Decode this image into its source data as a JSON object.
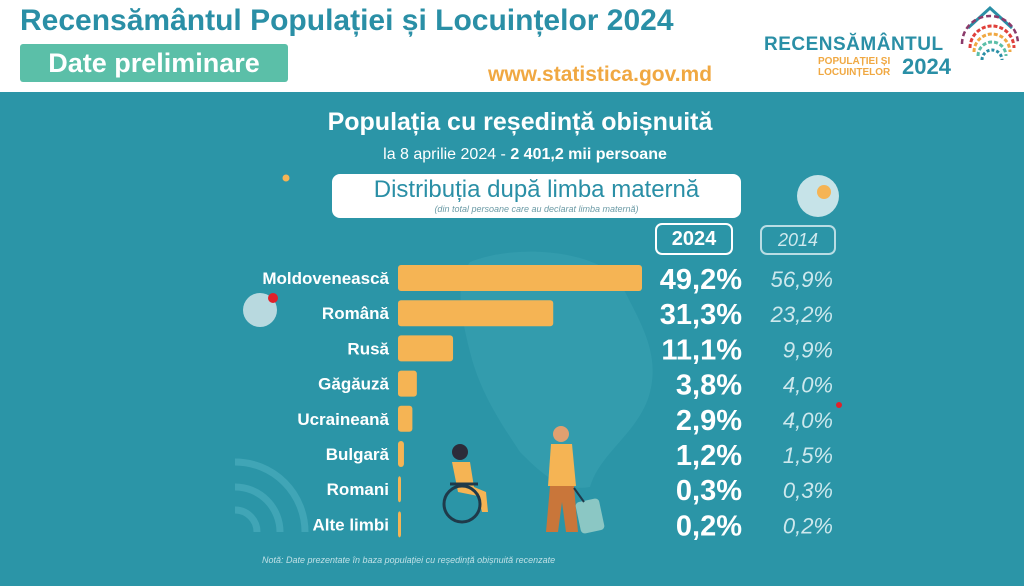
{
  "header": {
    "title": "Recensământul Populației și Locuințelor 2024",
    "badge": "Date preliminare",
    "website": "www.statistica.gov.md",
    "logo": {
      "line1": "RECENSĂMÂNTUL",
      "line2": "POPULAȚIEI ȘI",
      "line3": "LOCUINȚELOR",
      "year": "2024"
    }
  },
  "panel": {
    "subtitle": "Populația cu reședință obișnuită",
    "date_prefix": "la 8 aprilie 2024 - ",
    "date_value": "2 401,2 mii persoane",
    "distribution_title": "Distribuția după limba maternă",
    "distribution_note": "(din total persoane care au declarat limba maternă)",
    "footnote": "Notă: Date prezentate în baza populației cu reședință obișnuită recenzate"
  },
  "colors": {
    "panel_bg": "#2b95a7",
    "bar": "#f5b454",
    "header_teal": "#2a8fa6",
    "accent_orange": "#f0a842",
    "badge_green": "#5bbfa8"
  },
  "chart_data": {
    "type": "bar",
    "orientation": "horizontal",
    "categories": [
      "Moldovenească",
      "Română",
      "Rusă",
      "Găgăuză",
      "Ucraineană",
      "Bulgară",
      "Romani",
      "Alte limbi"
    ],
    "series": [
      {
        "name": "2024",
        "values": [
          49.2,
          31.3,
          11.1,
          3.8,
          2.9,
          1.2,
          0.3,
          0.2
        ],
        "labels": [
          "49,2%",
          "31,3%",
          "11,1%",
          "3,8%",
          "2,9%",
          "1,2%",
          "0,3%",
          "0,2%"
        ]
      },
      {
        "name": "2014",
        "values": [
          56.9,
          23.2,
          9.9,
          4.0,
          4.0,
          1.5,
          0.3,
          0.2
        ],
        "labels": [
          "56,9%",
          "23,2%",
          "9,9%",
          "4,0%",
          "4,0%",
          "1,5%",
          "0,3%",
          "0,2%"
        ]
      }
    ],
    "bars_series": "2024",
    "unit": "%",
    "title": "Distribuția după limba maternă"
  }
}
